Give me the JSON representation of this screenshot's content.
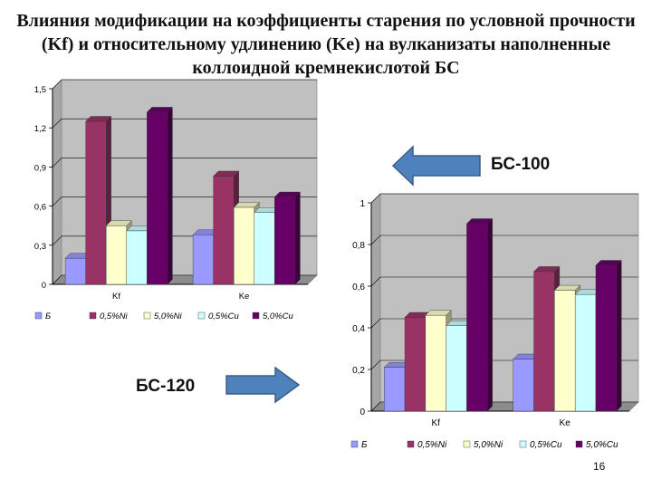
{
  "title": "Влияния модификации на коэффициенты старения по условной прочности (Kf) и относительному удлинению (Ke) на вулканизаты наполненные коллоидной кремнекислотой БС",
  "labels": {
    "bs100": "БС-100",
    "bs120": "БС-120"
  },
  "page_number": "16",
  "colors": {
    "series": [
      "#9999ff",
      "#993366",
      "#ffffcc",
      "#ccffff",
      "#660066"
    ],
    "plot_bg": "#c0c0c0",
    "arrow": "#4f81bd"
  },
  "chart_data": [
    {
      "type": "bar",
      "categories": [
        "Kf",
        "Ke"
      ],
      "series": [
        {
          "name": "Б",
          "values": [
            0.2,
            0.38
          ]
        },
        {
          "name": "0,5%Ni",
          "values": [
            1.25,
            0.83
          ]
        },
        {
          "name": "5,0%Ni",
          "values": [
            0.45,
            0.59
          ]
        },
        {
          "name": "0,5%Cu",
          "values": [
            0.41,
            0.55
          ]
        },
        {
          "name": "5,0%Cu",
          "values": [
            1.32,
            0.67
          ]
        }
      ],
      "yticks": [
        "0",
        "0,3",
        "0,6",
        "0,9",
        "1,2",
        "1,5"
      ],
      "ylim": [
        0,
        1.5
      ],
      "grid": true,
      "legend": "bottom"
    },
    {
      "type": "bar",
      "categories": [
        "Kf",
        "Ke"
      ],
      "series": [
        {
          "name": "Б",
          "values": [
            0.21,
            0.25
          ]
        },
        {
          "name": "0,5%Ni",
          "values": [
            0.45,
            0.67
          ]
        },
        {
          "name": "5,0%Ni",
          "values": [
            0.46,
            0.58
          ]
        },
        {
          "name": "0,5%Cu",
          "values": [
            0.41,
            0.56
          ]
        },
        {
          "name": "5,0%Cu",
          "values": [
            0.9,
            0.7
          ]
        }
      ],
      "yticks": [
        "0",
        "0,2",
        "0,4",
        "0,6",
        "0,8",
        "1"
      ],
      "ylim": [
        0,
        1
      ],
      "grid": true,
      "legend": "bottom"
    }
  ]
}
